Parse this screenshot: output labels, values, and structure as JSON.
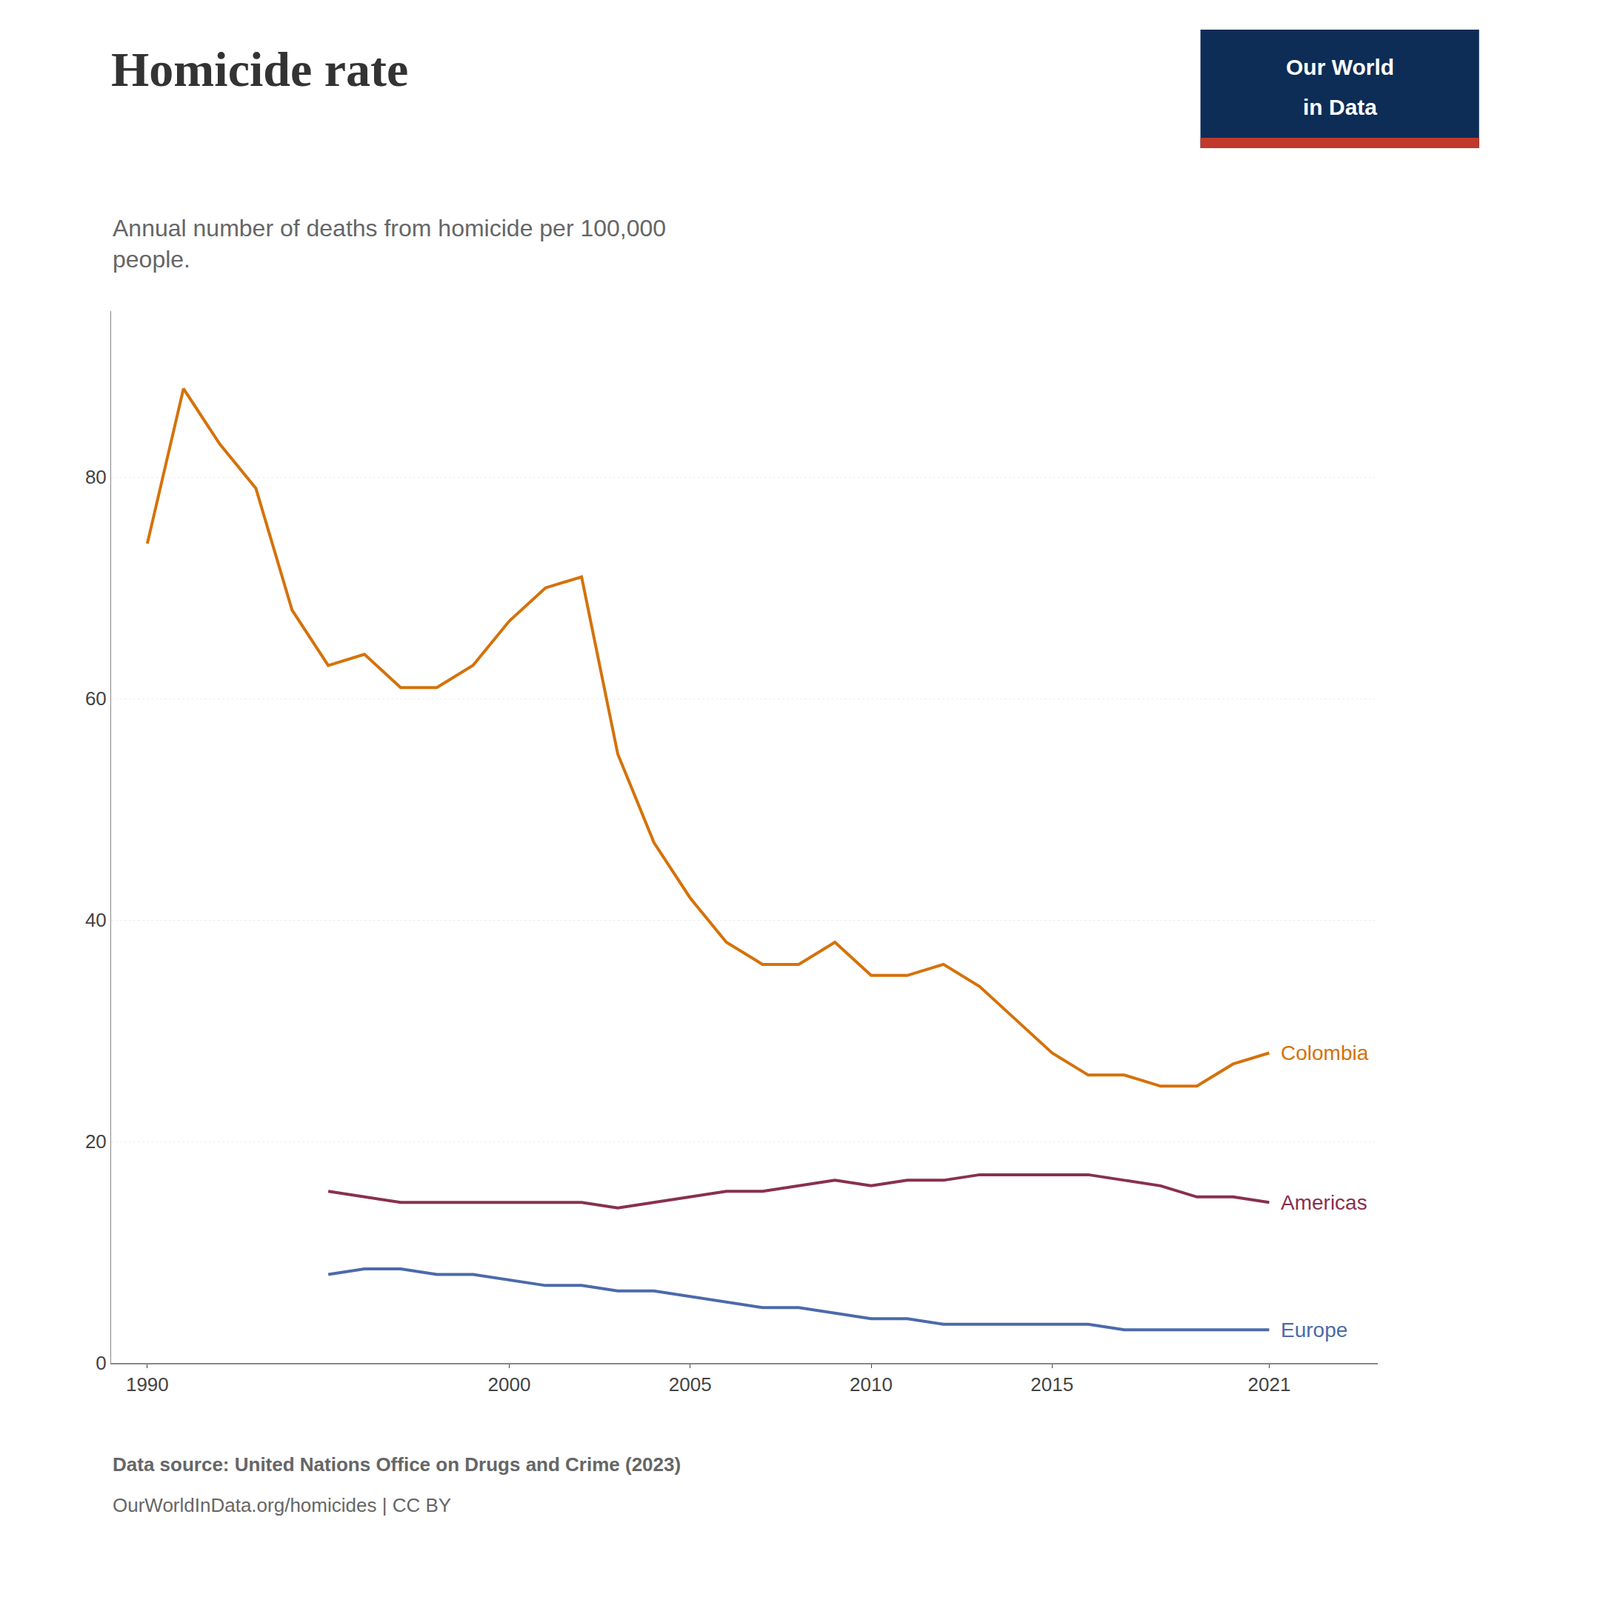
{
  "chart_data": {
    "type": "line",
    "title": "Homicide rate",
    "subtitle": "Annual number of deaths from homicide per 100,000\npeople.",
    "annotations": [
      "Data source: United Nations Office on Drugs and Crime (2023)",
      "OurWorldInData.org/homicides | CC BY",
      "Our World",
      "in Data"
    ],
    "series": [
      {
        "name": "Colombia",
        "color": "#D4720A",
        "x": [
          1990,
          1991,
          1992,
          1993,
          1994,
          1995,
          1996,
          1997,
          1998,
          1999,
          2000,
          2001,
          2002,
          2003,
          2004,
          2005,
          2006,
          2007,
          2008,
          2009,
          2010,
          2011,
          2012,
          2013,
          2014,
          2015,
          2016,
          2017,
          2018,
          2019,
          2020,
          2021
        ],
        "values": [
          74,
          88,
          83,
          79,
          68,
          63,
          64,
          61,
          61,
          63,
          67,
          70,
          71,
          55,
          47,
          42,
          38,
          36,
          36,
          38,
          35,
          35,
          36,
          34,
          31,
          28,
          26,
          26,
          25,
          25,
          27,
          28
        ]
      },
      {
        "name": "Americas",
        "color": "#883050",
        "x": [
          1995,
          1996,
          1997,
          1998,
          1999,
          2000,
          2001,
          2002,
          2003,
          2004,
          2005,
          2006,
          2007,
          2008,
          2009,
          2010,
          2011,
          2012,
          2013,
          2014,
          2015,
          2016,
          2017,
          2018,
          2019,
          2020,
          2021
        ],
        "values": [
          15.5,
          15.0,
          14.5,
          14.5,
          14.5,
          14.5,
          14.5,
          14.5,
          14.0,
          14.5,
          15.0,
          15.5,
          15.5,
          16.0,
          16.5,
          16.0,
          16.5,
          16.5,
          17.0,
          17.0,
          17.0,
          17.0,
          16.5,
          16.0,
          15.0,
          15.0,
          14.5
        ]
      },
      {
        "name": "Europe",
        "color": "#4C6AAB",
        "x": [
          1995,
          1996,
          1997,
          1998,
          1999,
          2000,
          2001,
          2002,
          2003,
          2004,
          2005,
          2006,
          2007,
          2008,
          2009,
          2010,
          2011,
          2012,
          2013,
          2014,
          2015,
          2016,
          2017,
          2018,
          2019,
          2020,
          2021
        ],
        "values": [
          8.0,
          8.5,
          8.5,
          8.0,
          8.0,
          7.5,
          7.0,
          7.0,
          6.5,
          6.5,
          6.0,
          5.5,
          5.0,
          5.0,
          4.5,
          4.0,
          4.0,
          3.5,
          3.5,
          3.5,
          3.5,
          3.5,
          3.0,
          3.0,
          3.0,
          3.0,
          3.0
        ]
      }
    ],
    "xlim": [
      1989,
      2024
    ],
    "xticks": [
      1990,
      2000,
      2005,
      2010,
      2015,
      2021
    ],
    "ylim": [
      0,
      95
    ],
    "yticks": [
      0,
      20,
      40,
      60,
      80
    ],
    "grid": true
  }
}
